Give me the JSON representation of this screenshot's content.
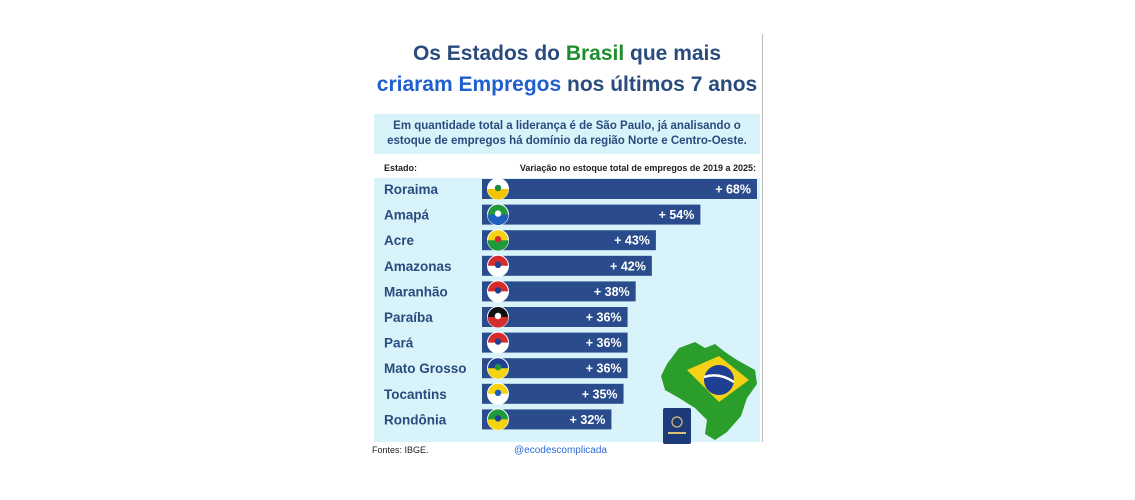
{
  "title": {
    "line1_a": "Os Estados do ",
    "line1_b": "Brasil",
    "line1_c": " que mais",
    "line2_a": "criaram Empregos",
    "line2_b": " nos últimos 7 anos"
  },
  "subtitle": "Em quantidade total a liderança é de São Paulo, já analisando o estoque de empregos há domínio da região Norte e Centro-Oeste.",
  "headers": {
    "state": "Estado:",
    "variation": "Variação no estoque total de empregos de 2019 a 2025:"
  },
  "footer": {
    "source": "Fontes: IBGE.",
    "handle": "@ecodescomplicada"
  },
  "colors": {
    "title": "#2a4b7e",
    "accent_green": "#1f8c2e",
    "accent_blue": "#1f5fd0",
    "bar": "#2b4c8c",
    "panel": "#d9f3fa"
  },
  "chart_data": {
    "type": "bar",
    "orientation": "horizontal",
    "categories": [
      "Roraima",
      "Amapá",
      "Acre",
      "Amazonas",
      "Maranhão",
      "Paraíba",
      "Pará",
      "Mato Grosso",
      "Tocantins",
      "Rondônia"
    ],
    "values": [
      68,
      54,
      43,
      42,
      38,
      36,
      36,
      36,
      35,
      32
    ],
    "labels": [
      "+ 68%",
      "+ 54%",
      "+ 43%",
      "+ 42%",
      "+ 38%",
      "+ 36%",
      "+ 36%",
      "+ 36%",
      "+ 35%",
      "+ 32%"
    ],
    "flag_icons": [
      "roraima-flag-icon",
      "amapa-flag-icon",
      "acre-flag-icon",
      "amazonas-flag-icon",
      "maranhao-flag-icon",
      "paraiba-flag-icon",
      "para-flag-icon",
      "mato-grosso-flag-icon",
      "tocantins-flag-icon",
      "rondonia-flag-icon"
    ],
    "xlim": [
      0,
      68
    ]
  }
}
